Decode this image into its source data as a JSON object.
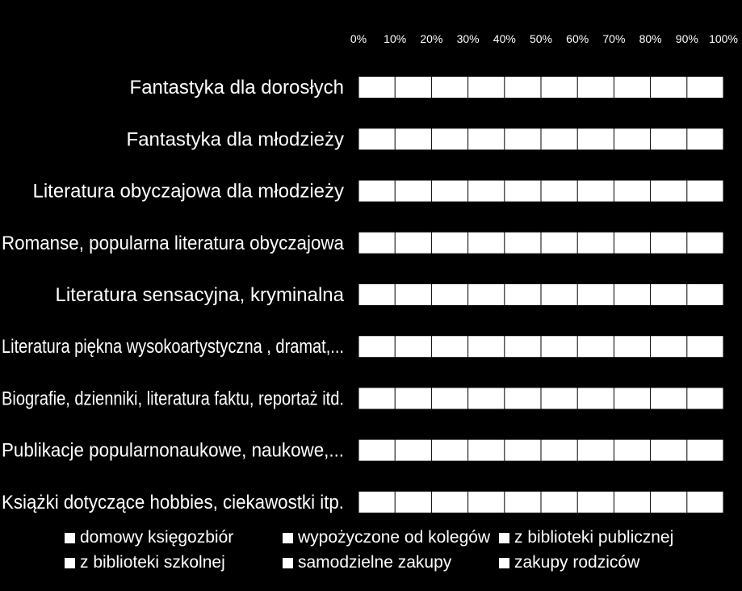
{
  "chart_data": {
    "type": "bar",
    "orientation": "horizontal",
    "stacked": true,
    "percent_stacked": true,
    "categories": [
      "Fantastyka  dla dorosłych",
      "Fantastyka dla młodzieży",
      "Literatura obyczajowa  dla młodzieży",
      "Romanse, popularna literatura  obyczajowa",
      "Literatura sensacyjna, kryminalna",
      "Literatura piękna wysokoartystyczna , dramat,...",
      "Biografie, dzienniki, literatura faktu, reportaż itd.",
      "Publikacje popularnonaukowe, naukowe,...",
      "Książki dotyczące hobbies, ciekawostki itp."
    ],
    "series": [
      {
        "name": "domowy księgozbiór",
        "values": [
          100,
          100,
          100,
          100,
          100,
          100,
          100,
          100,
          100
        ]
      },
      {
        "name": "wypożyczone  od kolegów",
        "values": [
          0,
          0,
          0,
          0,
          0,
          0,
          0,
          0,
          0
        ]
      },
      {
        "name": "z biblioteki publicznej",
        "values": [
          0,
          0,
          0,
          0,
          0,
          0,
          0,
          0,
          0
        ]
      },
      {
        "name": "z biblioteki szkolnej",
        "values": [
          0,
          0,
          0,
          0,
          0,
          0,
          0,
          0,
          0
        ]
      },
      {
        "name": "samodzielne zakupy",
        "values": [
          0,
          0,
          0,
          0,
          0,
          0,
          0,
          0,
          0
        ]
      },
      {
        "name": "zakupy rodziców",
        "values": [
          0,
          0,
          0,
          0,
          0,
          0,
          0,
          0,
          0
        ]
      }
    ],
    "xlim": [
      0,
      100
    ],
    "xticks": [
      "0%",
      "10%",
      "20%",
      "30%",
      "40%",
      "50%",
      "60%",
      "70%",
      "80%",
      "90%",
      "100%"
    ],
    "x_axis_position": "top",
    "grid": true,
    "legend_position": "bottom",
    "colors": {
      "background": "#000000",
      "bar": "#ffffff",
      "grid": "#000000",
      "text": "#ffffff"
    }
  }
}
